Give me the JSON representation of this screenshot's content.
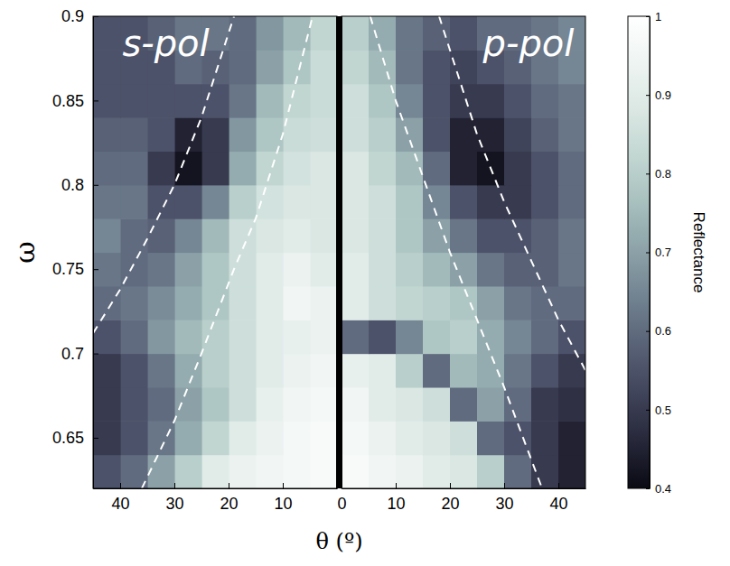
{
  "chart_data": {
    "type": "heatmap",
    "x_label": "θ (º)",
    "y_label": "ω",
    "ylim": [
      0.62,
      0.9
    ],
    "yticks": [
      0.65,
      0.7,
      0.75,
      0.8,
      0.85,
      0.9
    ],
    "x_bins": [
      0,
      5,
      10,
      15,
      20,
      25,
      30,
      35,
      40,
      45
    ],
    "y_bins": [
      0.62,
      0.64,
      0.66,
      0.68,
      0.7,
      0.72,
      0.74,
      0.76,
      0.78,
      0.8,
      0.82,
      0.84,
      0.86,
      0.88,
      0.9
    ],
    "panels": [
      {
        "title": "s-pol",
        "xlim": [
          45,
          0
        ],
        "xticks": [
          40,
          30,
          20,
          10
        ],
        "cells": [
          [
            0.97,
            0.96,
            0.95,
            0.93,
            0.9,
            0.8,
            0.7,
            0.6,
            0.55
          ],
          [
            0.97,
            0.96,
            0.93,
            0.9,
            0.82,
            0.72,
            0.62,
            0.55,
            0.5
          ],
          [
            0.96,
            0.95,
            0.92,
            0.85,
            0.78,
            0.7,
            0.6,
            0.55,
            0.5
          ],
          [
            0.95,
            0.93,
            0.9,
            0.85,
            0.8,
            0.72,
            0.62,
            0.55,
            0.5
          ],
          [
            0.93,
            0.92,
            0.9,
            0.85,
            0.8,
            0.75,
            0.68,
            0.6,
            0.55
          ],
          [
            0.93,
            0.95,
            0.9,
            0.85,
            0.78,
            0.72,
            0.66,
            0.62,
            0.6
          ],
          [
            0.9,
            0.93,
            0.9,
            0.85,
            0.78,
            0.7,
            0.62,
            0.6,
            0.62
          ],
          [
            0.88,
            0.9,
            0.88,
            0.85,
            0.75,
            0.65,
            0.58,
            0.6,
            0.65
          ],
          [
            0.88,
            0.88,
            0.86,
            0.8,
            0.65,
            0.55,
            0.55,
            0.62,
            0.62
          ],
          [
            0.88,
            0.86,
            0.82,
            0.72,
            0.5,
            0.42,
            0.5,
            0.6,
            0.6
          ],
          [
            0.85,
            0.84,
            0.78,
            0.68,
            0.5,
            0.45,
            0.55,
            0.58,
            0.58
          ],
          [
            0.84,
            0.82,
            0.75,
            0.62,
            0.55,
            0.55,
            0.55,
            0.55,
            0.55
          ],
          [
            0.84,
            0.78,
            0.7,
            0.6,
            0.58,
            0.6,
            0.55,
            0.55,
            0.55
          ],
          [
            0.82,
            0.75,
            0.68,
            0.6,
            0.62,
            0.62,
            0.58,
            0.55,
            0.55
          ]
        ],
        "lines": [
          {
            "x": [
              45,
              40,
              35,
              30,
              25,
              19
            ],
            "y": [
              0.712,
              0.738,
              0.768,
              0.8,
              0.84,
              0.9
            ],
            "color": "#ffffff",
            "line_style": "dashed"
          },
          {
            "x": [
              36,
              30,
              25,
              19,
              15,
              10,
              4.5
            ],
            "y": [
              0.62,
              0.66,
              0.7,
              0.75,
              0.78,
              0.83,
              0.9
            ],
            "color": "#ffffff",
            "line_style": "dashed"
          }
        ]
      },
      {
        "title": "p-pol",
        "xlim": [
          0,
          45
        ],
        "xticks": [
          0,
          10,
          20,
          30,
          40
        ],
        "cells": [
          [
            0.97,
            0.95,
            0.93,
            0.9,
            0.88,
            0.8,
            0.6,
            0.5,
            0.45
          ],
          [
            0.96,
            0.93,
            0.9,
            0.88,
            0.85,
            0.6,
            0.55,
            0.5,
            0.45
          ],
          [
            0.95,
            0.9,
            0.88,
            0.85,
            0.6,
            0.7,
            0.6,
            0.5,
            0.48
          ],
          [
            0.92,
            0.9,
            0.8,
            0.6,
            0.75,
            0.72,
            0.62,
            0.55,
            0.5
          ],
          [
            0.6,
            0.55,
            0.65,
            0.78,
            0.8,
            0.72,
            0.65,
            0.6,
            0.55
          ],
          [
            0.9,
            0.85,
            0.82,
            0.8,
            0.78,
            0.7,
            0.62,
            0.6,
            0.6
          ],
          [
            0.9,
            0.85,
            0.8,
            0.75,
            0.7,
            0.62,
            0.58,
            0.58,
            0.62
          ],
          [
            0.88,
            0.85,
            0.78,
            0.7,
            0.62,
            0.55,
            0.55,
            0.58,
            0.62
          ],
          [
            0.88,
            0.85,
            0.78,
            0.65,
            0.55,
            0.5,
            0.5,
            0.55,
            0.6
          ],
          [
            0.88,
            0.82,
            0.75,
            0.6,
            0.45,
            0.42,
            0.5,
            0.55,
            0.6
          ],
          [
            0.85,
            0.8,
            0.7,
            0.55,
            0.45,
            0.45,
            0.52,
            0.58,
            0.62
          ],
          [
            0.85,
            0.78,
            0.65,
            0.55,
            0.5,
            0.5,
            0.55,
            0.6,
            0.62
          ],
          [
            0.82,
            0.75,
            0.62,
            0.55,
            0.52,
            0.55,
            0.58,
            0.62,
            0.65
          ],
          [
            0.8,
            0.72,
            0.62,
            0.58,
            0.55,
            0.6,
            0.6,
            0.62,
            0.65
          ]
        ],
        "lines": [
          {
            "x": [
              5.3,
              10,
              15,
              20,
              25,
              30,
              37
            ],
            "y": [
              0.9,
              0.85,
              0.805,
              0.76,
              0.72,
              0.68,
              0.62
            ],
            "color": "#ffffff",
            "line_style": "dashed"
          },
          {
            "x": [
              18,
              25,
              30,
              35,
              40,
              45
            ],
            "y": [
              0.9,
              0.83,
              0.79,
              0.755,
              0.72,
              0.69
            ],
            "color": "#ffffff",
            "line_style": "dashed"
          }
        ]
      }
    ],
    "colorbar": {
      "label": "Reflectance",
      "range": [
        0.4,
        1
      ],
      "ticks": [
        0.4,
        0.5,
        0.6,
        0.7,
        0.8,
        0.9,
        1
      ]
    }
  }
}
